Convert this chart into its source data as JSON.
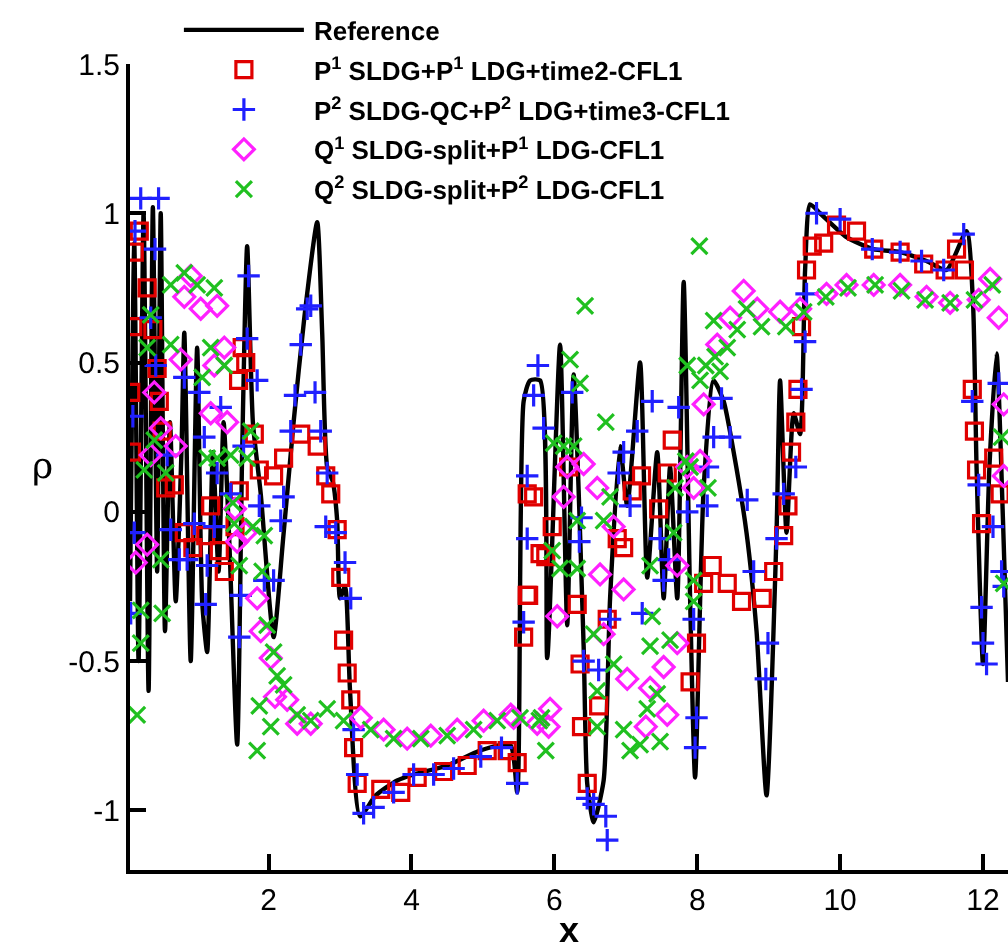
{
  "chart_data": {
    "type": "line",
    "xlabel": "x",
    "ylabel": "ρ",
    "xlim": [
      0.06,
      12.35
    ],
    "xticks": [
      2,
      4,
      6,
      8,
      10,
      12
    ],
    "ylim": [
      -1.2,
      1.5
    ],
    "yticks": [
      -1,
      -0.5,
      0,
      0.5,
      1,
      1.5
    ],
    "legend": "top",
    "series": [
      {
        "name": "Reference",
        "color": "#000000",
        "marker": "none",
        "line_style": "solid",
        "x": [
          0.06,
          0.12,
          0.18,
          0.25,
          0.32,
          0.38,
          0.44,
          0.49,
          0.55,
          0.62,
          0.7,
          0.78,
          0.82,
          0.91,
          1.0,
          1.07,
          1.14,
          1.22,
          1.3,
          1.37,
          1.45,
          1.56,
          1.63,
          1.7,
          1.78,
          1.89,
          2.07,
          2.2,
          2.35,
          2.5,
          2.68,
          2.75,
          2.82,
          2.9,
          2.96,
          3.0,
          3.07,
          3.14,
          3.28,
          3.5,
          3.8,
          4.03,
          4.5,
          4.96,
          5.38,
          5.48,
          5.57,
          5.66,
          5.8,
          5.9,
          6.08,
          6.18,
          6.27,
          6.41,
          6.46,
          6.55,
          6.69,
          6.78,
          6.92,
          7.02,
          7.2,
          7.3,
          7.44,
          7.53,
          7.62,
          7.72,
          7.81,
          7.9,
          7.97,
          8.09,
          8.23,
          8.37,
          8.51,
          8.69,
          8.83,
          8.97,
          9.11,
          9.16,
          9.25,
          9.35,
          9.44,
          9.51,
          9.58,
          9.72,
          10.09,
          10.46,
          10.84,
          11.21,
          11.49,
          11.77,
          11.86,
          11.91,
          12.0,
          12.09,
          12.19,
          12.28,
          12.35
        ],
        "values": [
          -0.3,
          0.9,
          -0.5,
          1.0,
          -0.6,
          1.02,
          -0.2,
          1.0,
          -0.4,
          0.3,
          -0.3,
          0.2,
          0.6,
          -0.5,
          0.55,
          -0.3,
          -0.47,
          0.2,
          -0.2,
          0.3,
          -0.1,
          -0.78,
          0.2,
          0.89,
          0.3,
          0.06,
          -0.42,
          -0.1,
          0.3,
          0.65,
          0.97,
          0.6,
          0.15,
          0.1,
          -0.03,
          -0.29,
          -0.25,
          -0.6,
          -1.02,
          -0.95,
          -0.9,
          -0.88,
          -0.85,
          -0.8,
          -0.78,
          -0.94,
          0.37,
          0.44,
          0.44,
          -0.49,
          0.56,
          -0.38,
          0.46,
          -0.45,
          -0.91,
          -1.04,
          -0.9,
          -0.29,
          0.22,
          0.02,
          0.5,
          -0.22,
          0.2,
          -0.29,
          0.15,
          -0.29,
          0.77,
          -0.29,
          -0.89,
          0.08,
          0.44,
          0.37,
          0.2,
          -0.07,
          -0.4,
          -0.95,
          -0.07,
          0.44,
          -0.07,
          0.33,
          0.26,
          0.81,
          1.03,
          1.0,
          0.92,
          0.88,
          0.87,
          0.84,
          0.81,
          0.94,
          0.7,
          0.15,
          -0.51,
          0.15,
          0.53,
          -0.03,
          -0.57
        ]
      },
      {
        "name": "P$^{1}$ SLDG+P$^{1}$ LDG+time2-CFL1",
        "type": "scatter",
        "color": "#e00000",
        "marker": "square",
        "x": [
          0.12,
          0.19,
          0.3,
          0.1,
          0.07,
          0.08,
          0.38,
          0.44,
          0.47,
          0.51,
          0.56,
          0.68,
          0.82,
          0.94,
          1.12,
          1.19,
          1.31,
          1.38,
          1.53,
          1.59,
          1.63,
          1.68,
          1.58,
          1.8,
          1.87,
          2.07,
          2.21,
          2.45,
          2.68,
          2.8,
          2.87,
          2.96,
          3.01,
          3.05,
          3.1,
          3.15,
          3.19,
          3.24,
          3.57,
          3.85,
          4.08,
          4.45,
          4.78,
          5.06,
          5.34,
          5.48,
          5.64,
          5.71,
          5.8,
          5.62,
          5.62,
          5.57,
          5.88,
          5.97,
          6.2,
          6.32,
          6.36,
          6.38,
          6.46,
          6.62,
          6.74,
          6.88,
          6.97,
          7.09,
          7.22,
          7.46,
          7.58,
          7.65,
          7.9,
          7.99,
          8.09,
          8.21,
          8.42,
          8.62,
          8.91,
          9.07,
          9.21,
          9.27,
          9.32,
          9.38,
          9.41,
          9.46,
          9.53,
          9.61,
          9.77,
          9.95,
          10.23,
          10.47,
          10.84,
          11.17,
          11.47,
          11.63,
          11.74,
          11.85,
          11.88,
          11.91,
          11.98,
          12.15,
          12.24
        ],
        "values": [
          0.87,
          0.94,
          0.75,
          0.62,
          0.4,
          0.2,
          0.61,
          0.48,
          0.37,
          0.27,
          0.08,
          0.09,
          -0.07,
          -0.12,
          -0.08,
          0.02,
          -0.13,
          -0.2,
          -0.05,
          0.07,
          0.55,
          0.5,
          0.44,
          0.26,
          0.14,
          0.12,
          0.18,
          0.26,
          0.22,
          0.12,
          0.06,
          -0.06,
          -0.22,
          -0.43,
          -0.54,
          -0.63,
          -0.79,
          -0.91,
          -0.93,
          -0.94,
          -0.89,
          -0.87,
          -0.85,
          -0.8,
          -0.8,
          -0.84,
          -0.28,
          0.05,
          -0.14,
          0.06,
          -0.28,
          -0.42,
          -0.15,
          -0.05,
          0.15,
          -0.31,
          -0.51,
          -0.72,
          -0.91,
          -0.65,
          -0.36,
          -0.09,
          -0.12,
          0.07,
          0.12,
          0.01,
          0.13,
          0.24,
          -0.57,
          -0.44,
          -0.24,
          -0.18,
          -0.24,
          -0.3,
          -0.29,
          -0.2,
          -0.08,
          0.02,
          0.2,
          0.3,
          0.41,
          0.62,
          0.81,
          0.89,
          0.9,
          0.96,
          0.94,
          0.88,
          0.87,
          0.83,
          0.81,
          0.88,
          0.81,
          0.41,
          0.27,
          0.14,
          -0.04,
          0.18,
          0.06
        ]
      },
      {
        "name": "P$^{2}$ SLDG-QC+P$^{2}$ LDG+time3-CFL1",
        "type": "scatter",
        "color": "#2020ff",
        "marker": "cross",
        "x": [
          0.21,
          0.46,
          0.13,
          0.41,
          0.1,
          0.12,
          0.07,
          0.35,
          0.42,
          0.58,
          0.63,
          0.75,
          0.82,
          0.86,
          0.96,
          1.03,
          1.1,
          1.12,
          1.14,
          1.24,
          1.28,
          1.33,
          1.47,
          1.59,
          1.61,
          1.65,
          1.7,
          1.72,
          1.84,
          1.87,
          1.94,
          2.07,
          2.17,
          2.21,
          2.31,
          2.37,
          2.45,
          2.54,
          2.59,
          2.65,
          2.73,
          2.82,
          2.8,
          2.94,
          3.07,
          3.15,
          3.19,
          3.24,
          3.33,
          3.47,
          3.75,
          4.03,
          4.31,
          4.59,
          4.97,
          5.26,
          5.48,
          5.57,
          5.62,
          5.71,
          5.77,
          5.62,
          5.85,
          6.25,
          6.35,
          6.38,
          6.41,
          6.46,
          6.55,
          6.74,
          6.72,
          6.62,
          6.78,
          6.9,
          6.97,
          7.06,
          7.16,
          7.23,
          7.37,
          7.48,
          7.53,
          7.6,
          7.74,
          7.86,
          7.95,
          7.99,
          7.97,
          8.14,
          8.15,
          8.23,
          8.34,
          8.46,
          8.7,
          8.79,
          8.99,
          8.96,
          9.11,
          9.21,
          9.38,
          9.46,
          9.51,
          9.53,
          9.67,
          10.0,
          10.45,
          10.84,
          11.14,
          11.45,
          11.73,
          11.85,
          11.94,
          11.98,
          12.0,
          12.05,
          12.14,
          12.22,
          12.26,
          12.29
        ],
        "values": [
          1.05,
          1.05,
          0.94,
          0.88,
          0.32,
          -0.07,
          -0.34,
          0.65,
          0.49,
          0.19,
          -0.06,
          -0.16,
          0.45,
          -0.16,
          -0.04,
          0.4,
          0.25,
          -0.31,
          -0.18,
          -0.05,
          0.13,
          0.35,
          0.06,
          -0.42,
          -0.28,
          0.22,
          0.58,
          0.79,
          0.44,
          0.02,
          -0.23,
          -0.23,
          -0.03,
          0.05,
          0.27,
          0.39,
          0.56,
          0.68,
          0.69,
          0.4,
          0.27,
          0.13,
          -0.05,
          -0.07,
          -0.17,
          -0.29,
          -0.73,
          -0.88,
          -1.01,
          -0.99,
          -0.94,
          -0.88,
          -0.88,
          -0.86,
          -0.82,
          -0.79,
          -0.91,
          -0.37,
          -0.09,
          0.39,
          0.49,
          0.12,
          0.28,
          0.4,
          -0.1,
          -0.02,
          -0.5,
          -0.96,
          -0.98,
          -1.1,
          -1.02,
          -0.53,
          -0.36,
          0.13,
          0.2,
          0.02,
          0.27,
          -0.34,
          0.37,
          -0.09,
          -0.23,
          -0.16,
          0.35,
          0.0,
          -0.36,
          -0.69,
          -0.79,
          0.02,
          0.15,
          0.25,
          0.38,
          0.25,
          0.04,
          -0.2,
          -0.44,
          -0.56,
          -0.09,
          0.06,
          0.15,
          0.41,
          0.57,
          0.73,
          1.0,
          0.98,
          0.88,
          0.87,
          0.84,
          0.81,
          0.93,
          0.37,
          0.09,
          -0.32,
          -0.44,
          -0.51,
          -0.05,
          0.43,
          -0.2,
          -0.25
        ]
      },
      {
        "name": "Q$^{1}$ SLDG-split+P$^{1}$ LDG-CFL1",
        "type": "scatter",
        "color": "#ff20ff",
        "marker": "diamond",
        "x": [
          0.14,
          0.3,
          0.35,
          0.4,
          0.49,
          0.7,
          0.77,
          0.82,
          0.91,
          1.05,
          1.28,
          1.24,
          1.38,
          1.19,
          1.42,
          1.53,
          1.56,
          1.68,
          1.84,
          1.89,
          2.03,
          2.09,
          2.26,
          2.4,
          2.59,
          3.29,
          3.61,
          3.94,
          4.27,
          4.64,
          5.01,
          5.39,
          5.76,
          5.43,
          5.94,
          5.92,
          6.18,
          6.41,
          6.13,
          6.04,
          6.6,
          6.64,
          6.83,
          6.69,
          6.97,
          7.02,
          7.34,
          7.53,
          7.58,
          7.28,
          7.72,
          7.72,
          7.86,
          7.95,
          8.04,
          8.09,
          8.28,
          8.46,
          8.65,
          8.84,
          9.16,
          9.44,
          9.81,
          10.09,
          10.47,
          10.84,
          11.21,
          11.54,
          11.94,
          12.1,
          12.22,
          12.29,
          12.29
        ],
        "values": [
          -0.17,
          -0.11,
          0.19,
          0.4,
          0.28,
          0.22,
          0.51,
          0.72,
          0.79,
          0.68,
          0.69,
          0.49,
          0.55,
          0.33,
          0.3,
          0.01,
          -0.1,
          -0.07,
          -0.29,
          -0.4,
          -0.49,
          -0.62,
          -0.63,
          -0.71,
          -0.71,
          -0.69,
          -0.73,
          -0.76,
          -0.75,
          -0.73,
          -0.7,
          -0.68,
          -0.71,
          -0.69,
          -0.66,
          -0.72,
          0.15,
          0.16,
          0.05,
          -0.35,
          0.08,
          -0.21,
          -0.05,
          -0.41,
          -0.26,
          -0.56,
          -0.59,
          -0.52,
          -0.68,
          -0.72,
          -0.44,
          -0.18,
          0.15,
          0.08,
          0.17,
          0.36,
          0.56,
          0.65,
          0.74,
          0.68,
          0.67,
          0.68,
          0.73,
          0.76,
          0.76,
          0.76,
          0.72,
          0.7,
          0.71,
          0.78,
          0.65,
          0.36,
          0.12
        ]
      },
      {
        "name": "Q$^{2}$ SLDG-split+P$^{2}$ LDG-CFL1",
        "type": "scatter",
        "color": "#20c020",
        "marker": "x",
        "x": [
          0.16,
          0.21,
          0.21,
          0.26,
          0.3,
          0.35,
          0.4,
          0.49,
          0.51,
          0.56,
          0.63,
          0.63,
          0.82,
          1.0,
          1.24,
          1.07,
          1.19,
          1.38,
          1.14,
          1.28,
          1.47,
          1.5,
          1.52,
          1.59,
          1.7,
          1.75,
          1.78,
          1.94,
          1.91,
          1.98,
          2.07,
          2.12,
          2.21,
          1.87,
          2.03,
          1.84,
          2.4,
          2.59,
          2.82,
          3.05,
          3.43,
          3.75,
          4.13,
          4.5,
          4.87,
          5.2,
          5.52,
          5.82,
          5.88,
          5.79,
          6.22,
          6.36,
          6.43,
          6.72,
          5.99,
          6.13,
          6.27,
          5.97,
          6.08,
          6.32,
          6.32,
          6.69,
          6.78,
          6.55,
          6.6,
          6.6,
          6.83,
          6.97,
          7.06,
          7.2,
          7.3,
          7.44,
          7.48,
          7.37,
          7.34,
          7.62,
          7.34,
          7.67,
          7.69,
          7.84,
          7.9,
          8.15,
          7.95,
          7.95,
          7.86,
          8.04,
          8.12,
          8.25,
          8.42,
          8.23,
          8.32,
          8.56,
          8.69,
          8.9,
          9.24,
          9.49,
          9.8,
          10.11,
          10.49,
          10.86,
          11.19,
          11.54,
          11.88,
          12.13,
          12.26,
          12.29,
          8.03
        ],
        "values": [
          -0.68,
          -0.44,
          -0.33,
          0.14,
          0.55,
          0.66,
          0.24,
          -0.16,
          -0.34,
          0.13,
          0.56,
          0.76,
          0.8,
          0.76,
          0.75,
          0.45,
          0.55,
          0.49,
          0.18,
          0.18,
          0.19,
          0.03,
          -0.04,
          -0.18,
          0.18,
          0.27,
          -0.05,
          -0.08,
          -0.2,
          -0.38,
          -0.47,
          -0.55,
          -0.58,
          -0.65,
          -0.72,
          -0.8,
          -0.68,
          -0.7,
          -0.66,
          -0.7,
          -0.73,
          -0.76,
          -0.76,
          -0.75,
          -0.73,
          -0.7,
          -0.69,
          -0.69,
          -0.8,
          -0.7,
          0.51,
          0.43,
          0.69,
          0.3,
          0.23,
          0.22,
          0.22,
          -0.13,
          -0.19,
          -0.19,
          -0.03,
          -0.03,
          0.05,
          -0.41,
          -0.6,
          -0.72,
          -0.51,
          -0.73,
          -0.8,
          -0.78,
          -0.66,
          -0.61,
          -0.77,
          -0.35,
          -0.45,
          -0.43,
          -0.18,
          -0.07,
          0.08,
          0.17,
          0.15,
          0.08,
          -0.3,
          -0.23,
          0.49,
          0.44,
          0.49,
          0.52,
          0.55,
          0.64,
          0.47,
          0.61,
          0.68,
          0.62,
          0.62,
          0.67,
          0.72,
          0.75,
          0.76,
          0.74,
          0.71,
          0.7,
          0.71,
          0.76,
          0.25,
          -0.24,
          0.89
        ]
      }
    ]
  }
}
